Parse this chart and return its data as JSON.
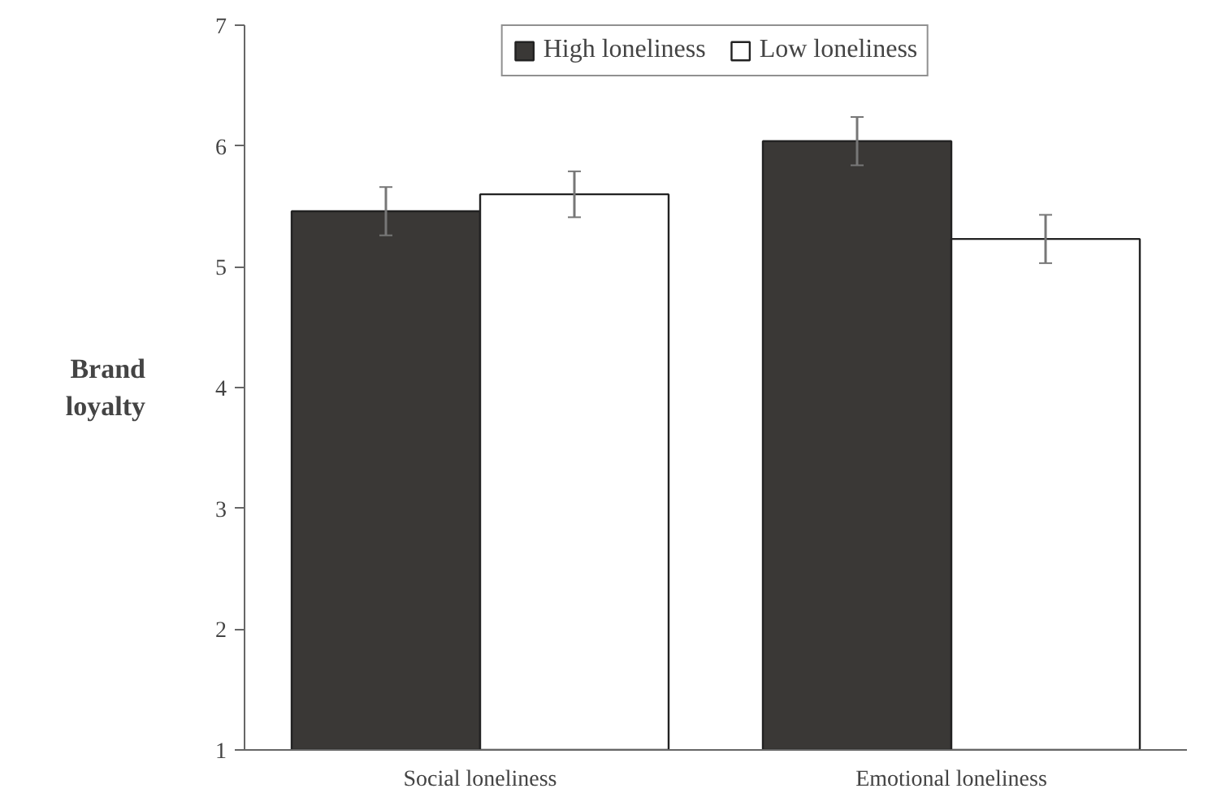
{
  "chart_data": {
    "type": "bar",
    "ylabel": "Brand loyalty",
    "categories": [
      "Social loneliness",
      "Emotional loneliness"
    ],
    "series": [
      {
        "name": "High loneliness",
        "color": "#3a3836",
        "values": [
          5.46,
          6.04
        ],
        "errors": [
          0.2,
          0.2
        ]
      },
      {
        "name": "Low loneliness",
        "color": "#ffffff",
        "values": [
          5.6,
          5.23
        ],
        "errors": [
          0.19,
          0.2
        ]
      }
    ],
    "ylim": [
      1,
      7
    ],
    "yticks": [
      1,
      2,
      3,
      4,
      5,
      6,
      7
    ],
    "grid": false,
    "legend": "top"
  }
}
